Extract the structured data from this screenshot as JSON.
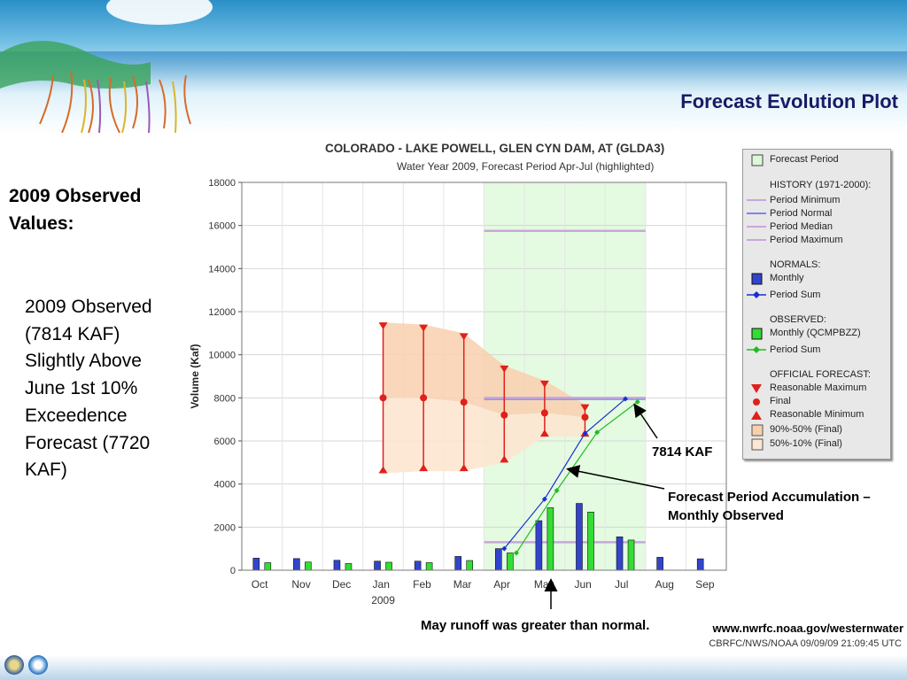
{
  "slide": {
    "title": "Forecast Evolution Plot",
    "observed_heading": "2009 Observed Values:",
    "observed_body": "2009 Observed (7814 KAF) Slightly Above June 1st 10% Exceedence Forecast (7720 KAF)",
    "note_7814": "7814 KAF",
    "note_accum_line1": "Forecast Period Accumulation –",
    "note_accum_line2": "Monthly Observed",
    "note_may": "May runoff was greater than normal.",
    "url": "www.nwrfc.noaa.gov/westernwater"
  },
  "chart_data": {
    "type": "bar",
    "title": "COLORADO - LAKE POWELL, GLEN CYN DAM, AT   (GLDA3)",
    "subtitle": "Water Year 2009, Forecast Period Apr-Jul (highlighted)",
    "ylabel": "Volume (Kaf)",
    "xlabel": "",
    "ylim": [
      0,
      18000
    ],
    "yticks": [
      0,
      2000,
      4000,
      6000,
      8000,
      10000,
      12000,
      14000,
      16000,
      18000
    ],
    "ytick_labels": [
      "0",
      "2000",
      "4000",
      "6000",
      "8000",
      "10000",
      "12000",
      "14000",
      "16000",
      "18000"
    ],
    "categories": [
      "Oct",
      "Nov",
      "Dec",
      "Jan",
      "Feb",
      "Mar",
      "Apr",
      "May",
      "Jun",
      "Jul",
      "Aug",
      "Sep"
    ],
    "year_label": "2009",
    "highlight_period": [
      "Apr",
      "Jul"
    ],
    "grid": true,
    "legend_position": "right",
    "series": [
      {
        "name": "Monthly",
        "kind": "bar",
        "color": "#3344cc",
        "values": [
          560,
          540,
          460,
          420,
          420,
          640,
          1000,
          2300,
          3100,
          1550,
          600,
          530
        ]
      },
      {
        "name": "Monthly (QCMPBZZ)",
        "kind": "bar",
        "color": "#33dd33",
        "values": [
          350,
          380,
          310,
          370,
          350,
          450,
          800,
          2900,
          2700,
          1400,
          null,
          null
        ]
      },
      {
        "name": "Period Sum",
        "kind": "normal-line",
        "color": "#1a2fd0",
        "x": [
          6.0,
          7.0,
          8.0,
          9.0
        ],
        "values": [
          1000,
          3300,
          6350,
          7950
        ]
      },
      {
        "name": "Period Sum",
        "kind": "observed-line",
        "color": "#22bb22",
        "x": [
          6.3,
          7.3,
          8.3,
          9.3
        ],
        "values": [
          800,
          3700,
          6400,
          7814
        ]
      },
      {
        "name": "Reasonable Maximum",
        "kind": "forecast",
        "x": [
          3,
          4,
          5,
          6,
          7,
          8
        ],
        "values": [
          11500,
          11400,
          11000,
          9500,
          8800,
          7700
        ]
      },
      {
        "name": "Final",
        "kind": "forecast",
        "x": [
          3,
          4,
          5,
          6,
          7,
          8
        ],
        "values": [
          8000,
          8000,
          7800,
          7200,
          7300,
          7100
        ]
      },
      {
        "name": "Reasonable Minimum",
        "kind": "forecast",
        "x": [
          3,
          4,
          5,
          6,
          7,
          8
        ],
        "values": [
          4500,
          4600,
          4600,
          5000,
          6200,
          6200
        ]
      }
    ],
    "history": [
      {
        "name": "Period Minimum",
        "color": "#c9a6dc",
        "value": 1300
      },
      {
        "name": "Period Normal",
        "color": "#7f86e6",
        "value": 7950
      },
      {
        "name": "Period Median",
        "color": "#c9a6dc",
        "value": 8000
      },
      {
        "name": "Period Maximum",
        "color": "#c9a6dc",
        "value": 15750
      }
    ],
    "credit": "CBRFC/NWS/NOAA 09/09/09 21:09:45 UTC",
    "legend": {
      "forecast_period": "Forecast Period",
      "history_heading": "HISTORY (1971-2000):",
      "period_minimum": "Period Minimum",
      "period_normal": "Period Normal",
      "period_median": "Period Median",
      "period_maximum": "Period Maximum",
      "normals_heading": "NORMALS:",
      "monthly": "Monthly",
      "period_sum": "Period Sum",
      "observed_heading": "OBSERVED:",
      "observed_monthly": "Monthly (QCMPBZZ)",
      "observed_period_sum": "Period Sum",
      "official_heading": "OFFICIAL FORECAST:",
      "reasonable_maximum": "Reasonable Maximum",
      "final": "Final",
      "reasonable_minimum": "Reasonable Minimum",
      "band_90_50": "90%-50% (Final)",
      "band_50_10": "50%-10% (Final)"
    },
    "colors": {
      "highlight": "#e4fbe1",
      "band_upper": "#f9cfae",
      "band_lower": "#fde6d2",
      "forecast_red": "#e0201b"
    }
  }
}
